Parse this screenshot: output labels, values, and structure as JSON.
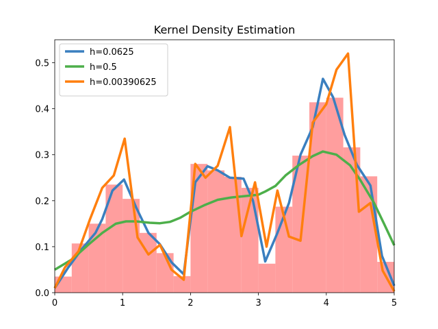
{
  "chart_data": {
    "type": "line",
    "title": "Kernel Density Estimation",
    "xlabel": "",
    "ylabel": "",
    "xlim": [
      0,
      5
    ],
    "ylim": [
      0,
      0.55
    ],
    "x_ticks": [
      0,
      1,
      2,
      3,
      4,
      5
    ],
    "x_tick_labels": [
      "0",
      "1",
      "2",
      "3",
      "4",
      "5"
    ],
    "y_ticks": [
      0.0,
      0.1,
      0.2,
      0.3,
      0.4,
      0.5
    ],
    "y_tick_labels": [
      "0.0",
      "0.1",
      "0.2",
      "0.3",
      "0.4",
      "0.5"
    ],
    "grid": false,
    "legend_position": "top-left",
    "histogram": {
      "color": "#ff9999",
      "bin_width": 0.25,
      "bins": [
        {
          "x0": 0.0,
          "height": 0.035
        },
        {
          "x0": 0.25,
          "height": 0.107
        },
        {
          "x0": 0.5,
          "height": 0.15
        },
        {
          "x0": 0.75,
          "height": 0.235
        },
        {
          "x0": 1.0,
          "height": 0.204
        },
        {
          "x0": 1.25,
          "height": 0.13
        },
        {
          "x0": 1.5,
          "height": 0.086
        },
        {
          "x0": 1.75,
          "height": 0.036
        },
        {
          "x0": 2.0,
          "height": 0.28
        },
        {
          "x0": 2.25,
          "height": 0.266
        },
        {
          "x0": 2.5,
          "height": 0.252
        },
        {
          "x0": 2.75,
          "height": 0.228
        },
        {
          "x0": 3.0,
          "height": 0.063
        },
        {
          "x0": 3.25,
          "height": 0.187
        },
        {
          "x0": 3.5,
          "height": 0.298
        },
        {
          "x0": 3.75,
          "height": 0.414
        },
        {
          "x0": 4.0,
          "height": 0.424
        },
        {
          "x0": 4.25,
          "height": 0.316
        },
        {
          "x0": 4.5,
          "height": 0.253
        },
        {
          "x0": 4.75,
          "height": 0.067
        }
      ]
    },
    "series": [
      {
        "name": "h=0.0625",
        "color": "#3a7fbf",
        "x": [
          0.0,
          0.2,
          0.4,
          0.6,
          0.7,
          0.85,
          1.02,
          1.2,
          1.38,
          1.55,
          1.72,
          1.9,
          2.07,
          2.25,
          2.4,
          2.58,
          2.78,
          2.92,
          3.1,
          3.28,
          3.45,
          3.62,
          3.8,
          3.95,
          4.1,
          4.27,
          4.45,
          4.65,
          4.82,
          5.0
        ],
        "y": [
          0.01,
          0.055,
          0.095,
          0.13,
          0.16,
          0.222,
          0.246,
          0.185,
          0.13,
          0.105,
          0.066,
          0.04,
          0.24,
          0.275,
          0.266,
          0.25,
          0.248,
          0.2,
          0.068,
          0.13,
          0.195,
          0.3,
          0.36,
          0.465,
          0.425,
          0.343,
          0.278,
          0.233,
          0.08,
          0.015
        ]
      },
      {
        "name": "h=0.5",
        "color": "#4daf4a",
        "x": [
          0.0,
          0.25,
          0.5,
          0.7,
          0.9,
          1.05,
          1.2,
          1.4,
          1.55,
          1.7,
          1.85,
          2.0,
          2.2,
          2.4,
          2.6,
          2.8,
          3.0,
          3.1,
          3.25,
          3.4,
          3.6,
          3.8,
          3.95,
          4.15,
          4.35,
          4.5,
          4.7,
          4.85,
          5.0
        ],
        "y": [
          0.05,
          0.072,
          0.105,
          0.13,
          0.15,
          0.155,
          0.155,
          0.152,
          0.151,
          0.154,
          0.163,
          0.176,
          0.19,
          0.202,
          0.207,
          0.21,
          0.213,
          0.22,
          0.232,
          0.255,
          0.278,
          0.297,
          0.307,
          0.3,
          0.277,
          0.245,
          0.196,
          0.15,
          0.103
        ]
      },
      {
        "name": "h=0.00390625",
        "color": "#ff7f0e",
        "x": [
          0.0,
          0.15,
          0.35,
          0.52,
          0.7,
          0.87,
          1.03,
          1.22,
          1.38,
          1.55,
          1.72,
          1.9,
          2.07,
          2.22,
          2.4,
          2.58,
          2.75,
          2.95,
          3.12,
          3.28,
          3.45,
          3.62,
          3.8,
          4.0,
          4.15,
          4.32,
          4.48,
          4.65,
          4.83,
          5.0
        ],
        "y": [
          0.01,
          0.055,
          0.09,
          0.16,
          0.228,
          0.255,
          0.335,
          0.12,
          0.083,
          0.104,
          0.05,
          0.028,
          0.28,
          0.25,
          0.276,
          0.36,
          0.123,
          0.24,
          0.1,
          0.222,
          0.122,
          0.113,
          0.37,
          0.41,
          0.485,
          0.52,
          0.176,
          0.195,
          0.048,
          0.003
        ]
      }
    ]
  }
}
